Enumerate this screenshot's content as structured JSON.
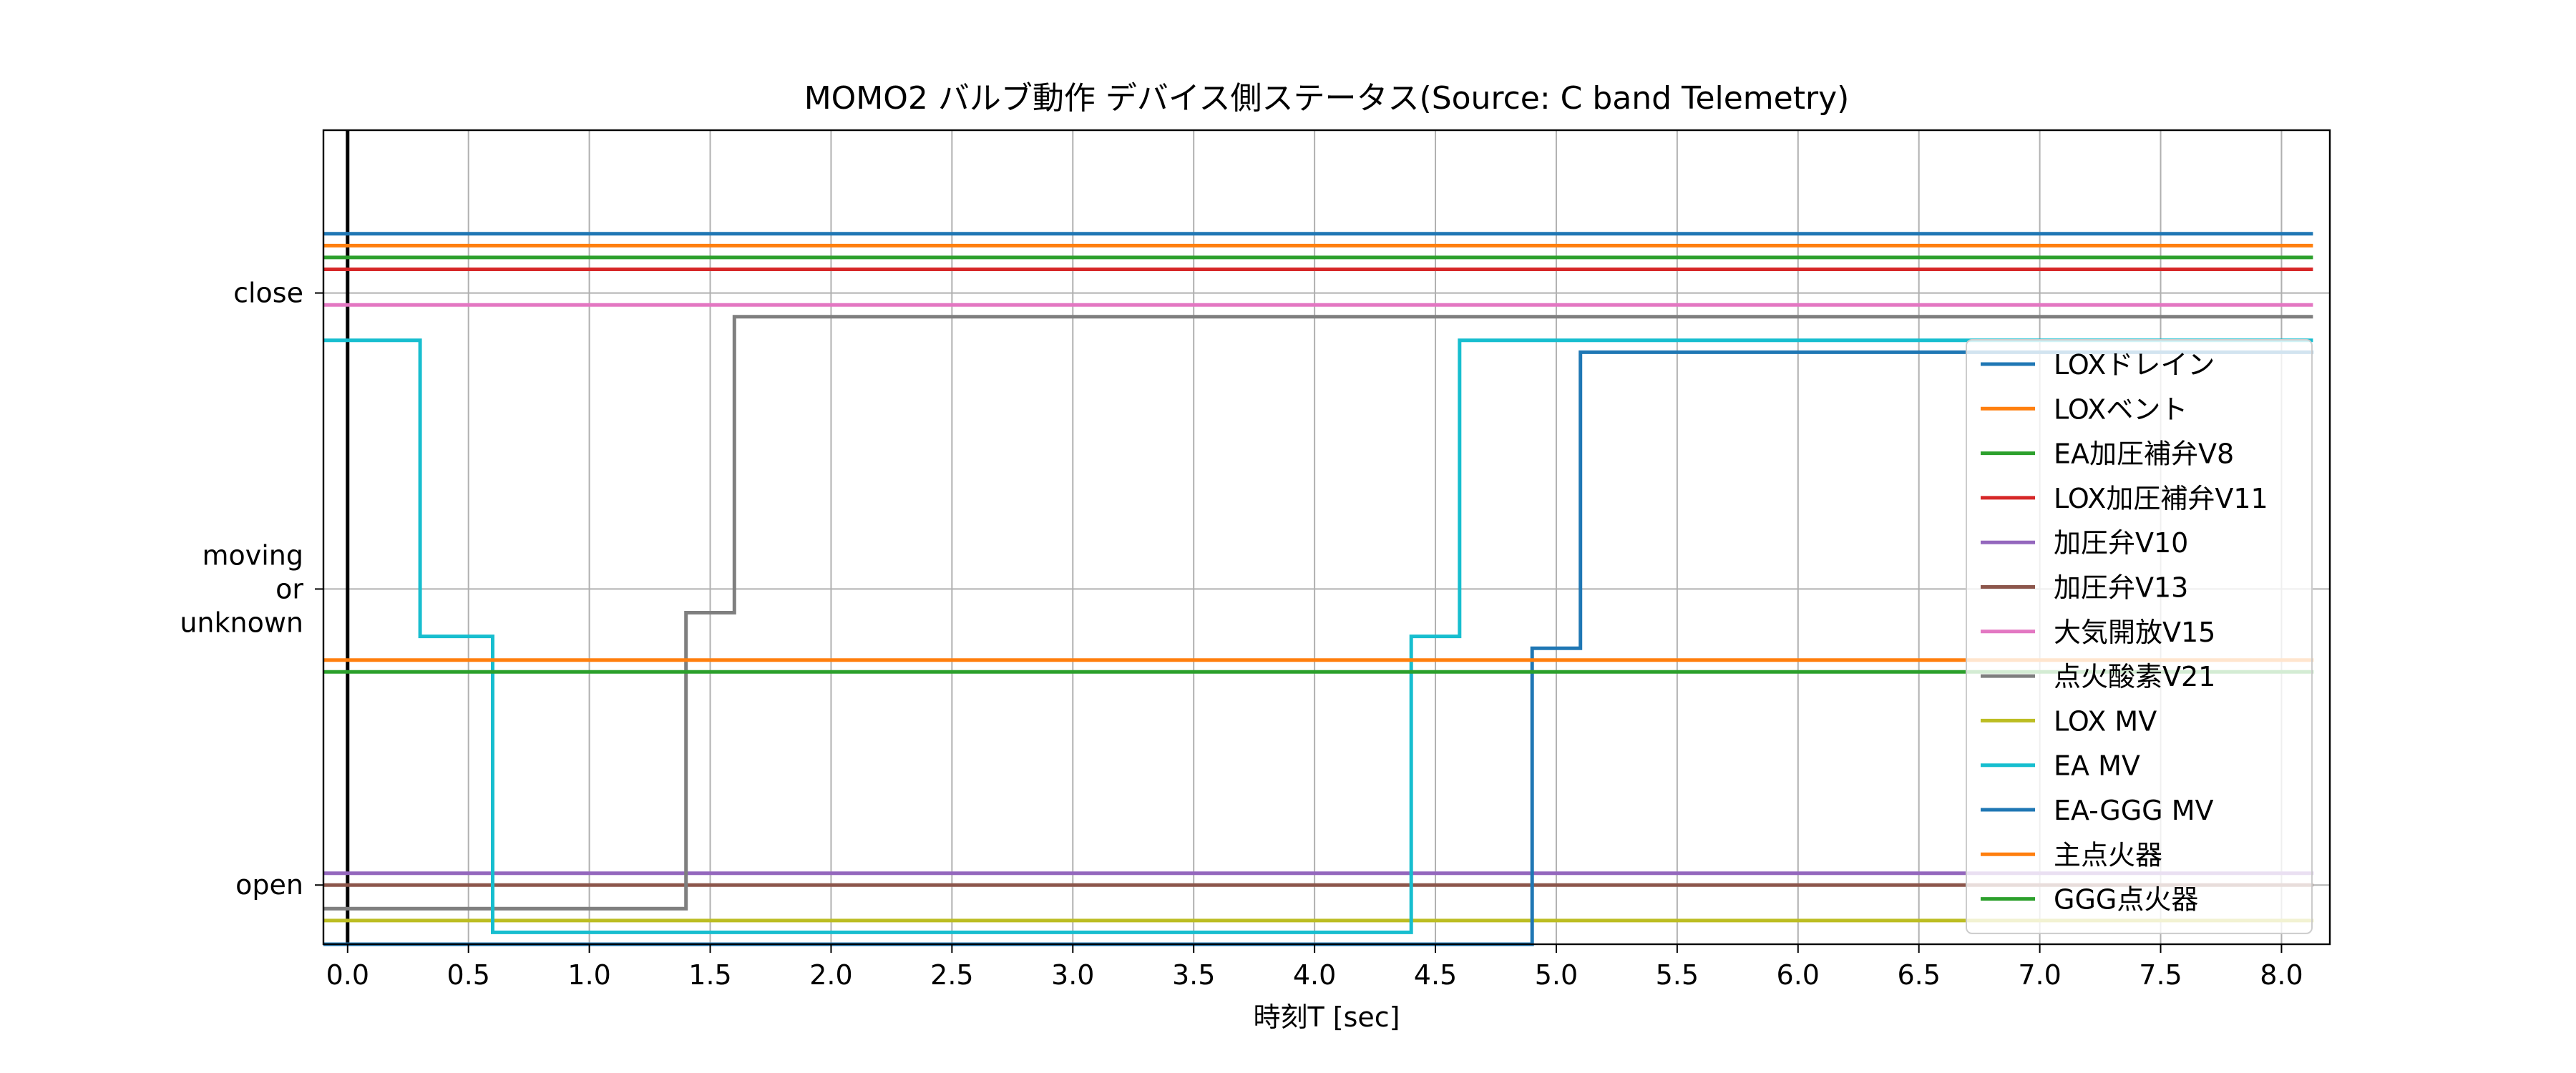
{
  "chart_data": {
    "type": "line",
    "step": true,
    "title": "MOMO2 バルブ動作 デバイス側ステータス(Source: C band Telemetry)",
    "xlabel": "時刻T [sec]",
    "ylabel": "",
    "xlim": [
      -0.1,
      8.2
    ],
    "ylim": [
      -0.2,
      2.55
    ],
    "grid": true,
    "legend_position": "center-right",
    "x_ticks": [
      0.0,
      0.5,
      1.0,
      1.5,
      2.0,
      2.5,
      3.0,
      3.5,
      4.0,
      4.5,
      5.0,
      5.5,
      6.0,
      6.5,
      7.0,
      7.5,
      8.0
    ],
    "x_tick_labels": [
      "0.0",
      "0.5",
      "1.0",
      "1.5",
      "2.0",
      "2.5",
      "3.0",
      "3.5",
      "4.0",
      "4.5",
      "5.0",
      "5.5",
      "6.0",
      "6.5",
      "7.0",
      "7.5",
      "8.0"
    ],
    "y_ticks": [
      {
        "value": 0,
        "lines": [
          "open"
        ]
      },
      {
        "value": 1,
        "lines": [
          "moving",
          "or",
          "unknown"
        ]
      },
      {
        "value": 2,
        "lines": [
          "close"
        ]
      }
    ],
    "reference_line_x": 0.0,
    "series": [
      {
        "name": "LOXドレイン",
        "color": "#1f77b4",
        "points": [
          [
            -0.1,
            2.2
          ],
          [
            8.13,
            2.2
          ]
        ]
      },
      {
        "name": "LOXベント",
        "color": "#ff7f0e",
        "points": [
          [
            -0.1,
            2.16
          ],
          [
            8.13,
            2.16
          ]
        ]
      },
      {
        "name": "EA加圧補弁V8",
        "color": "#2ca02c",
        "points": [
          [
            -0.1,
            2.12
          ],
          [
            8.13,
            2.12
          ]
        ]
      },
      {
        "name": "LOX加圧補弁V11",
        "color": "#d62728",
        "points": [
          [
            -0.1,
            2.08
          ],
          [
            8.13,
            2.08
          ]
        ]
      },
      {
        "name": "加圧弁V10",
        "color": "#9467bd",
        "points": [
          [
            -0.1,
            0.04
          ],
          [
            8.13,
            0.04
          ]
        ]
      },
      {
        "name": "加圧弁V13",
        "color": "#8c564b",
        "points": [
          [
            -0.1,
            0.0
          ],
          [
            8.13,
            0.0
          ]
        ]
      },
      {
        "name": "大気開放V15",
        "color": "#e377c2",
        "points": [
          [
            -0.1,
            1.96
          ],
          [
            8.13,
            1.96
          ]
        ]
      },
      {
        "name": "点火酸素V21",
        "color": "#7f7f7f",
        "points": [
          [
            -0.1,
            -0.08
          ],
          [
            1.4,
            -0.08
          ],
          [
            1.4,
            0.92
          ],
          [
            1.6,
            0.92
          ],
          [
            1.6,
            1.92
          ],
          [
            8.13,
            1.92
          ]
        ]
      },
      {
        "name": "LOX MV",
        "color": "#bcbd22",
        "points": [
          [
            -0.1,
            -0.12
          ],
          [
            8.13,
            -0.12
          ]
        ]
      },
      {
        "name": "EA MV",
        "color": "#17becf",
        "points": [
          [
            -0.1,
            1.84
          ],
          [
            0.3,
            1.84
          ],
          [
            0.3,
            0.84
          ],
          [
            0.6,
            0.84
          ],
          [
            0.6,
            -0.16
          ],
          [
            4.4,
            -0.16
          ],
          [
            4.4,
            0.84
          ],
          [
            4.6,
            0.84
          ],
          [
            4.6,
            1.84
          ],
          [
            8.13,
            1.84
          ]
        ]
      },
      {
        "name": "EA-GGG MV",
        "color": "#1f77b4",
        "points": [
          [
            -0.1,
            -0.2
          ],
          [
            4.9,
            -0.2
          ],
          [
            4.9,
            0.8
          ],
          [
            5.1,
            0.8
          ],
          [
            5.1,
            1.8
          ],
          [
            8.13,
            1.8
          ]
        ]
      },
      {
        "name": "主点火器",
        "color": "#ff7f0e",
        "points": [
          [
            -0.1,
            0.76
          ],
          [
            8.13,
            0.76
          ]
        ]
      },
      {
        "name": "GGG点火器",
        "color": "#2ca02c",
        "points": [
          [
            -0.1,
            0.72
          ],
          [
            8.13,
            0.72
          ]
        ]
      }
    ]
  }
}
